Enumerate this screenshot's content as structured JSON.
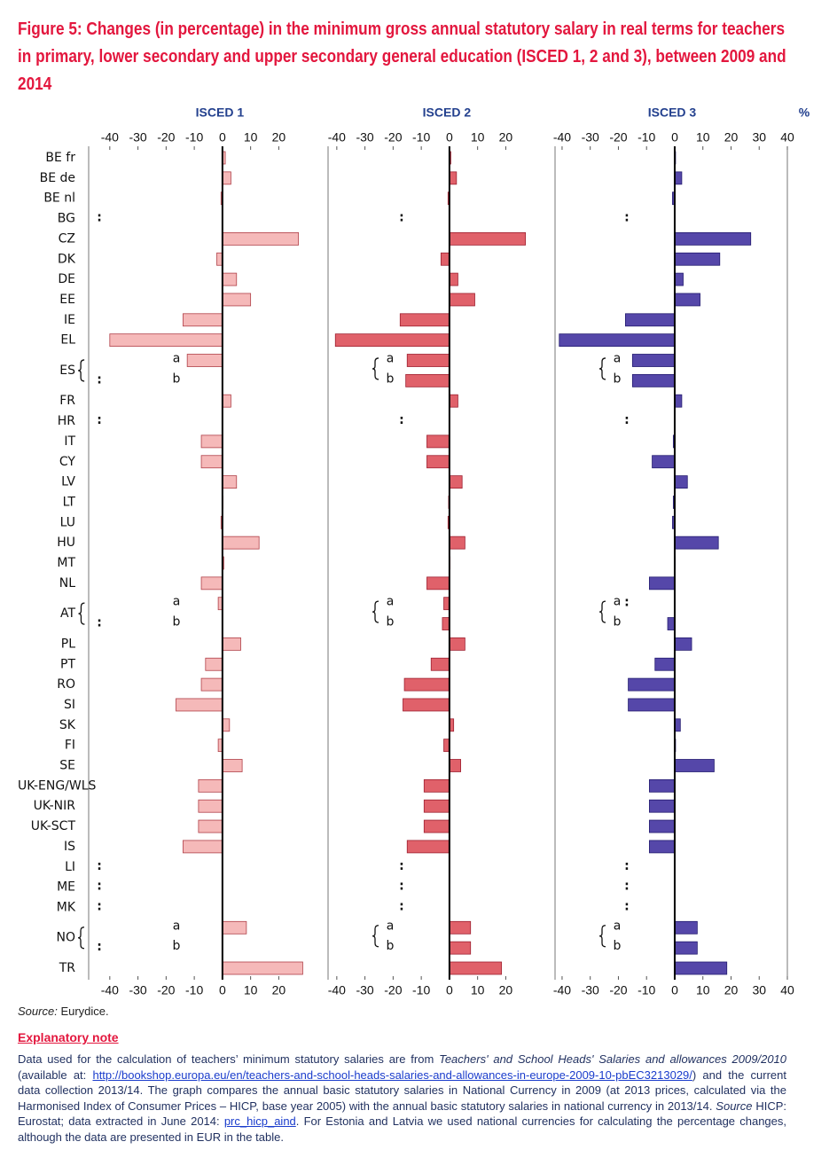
{
  "chart_data": {
    "type": "bar",
    "orientation": "horizontal",
    "title": "Figure 5: Changes (in percentage) in the minimum gross annual statutory salary in real terms for teachers in primary, lower secondary and upper secondary general education (ISCED 1, 2 and 3), between 2009 and 2014",
    "unit": "%",
    "missing_label": ":",
    "categories": [
      "BE fr",
      "BE de",
      "BE nl",
      "BG",
      "CZ",
      "DK",
      "DE",
      "EE",
      "IE",
      "EL",
      "ES",
      null,
      "FR",
      "HR",
      "IT",
      "CY",
      "LV",
      "LT",
      "LU",
      "HU",
      "MT",
      "NL",
      "AT",
      null,
      "PL",
      "PT",
      "RO",
      "SI",
      "SK",
      "FI",
      "SE",
      "UK-ENG/WLS",
      "UK-NIR",
      "UK-SCT",
      "IS",
      "LI",
      "ME",
      "MK",
      "NO",
      null,
      "TR"
    ],
    "sub_labels": [
      null,
      null,
      null,
      null,
      null,
      null,
      null,
      null,
      null,
      null,
      "a",
      "b",
      null,
      null,
      null,
      null,
      null,
      null,
      null,
      null,
      null,
      null,
      "a",
      "b",
      null,
      null,
      null,
      null,
      null,
      null,
      null,
      null,
      null,
      null,
      null,
      null,
      null,
      null,
      "a",
      "b",
      null
    ],
    "series": [
      {
        "name": "ISCED 1",
        "color": "#f5b9b9",
        "stroke": "#b04048",
        "xlim": [
          -47.5,
          37.5
        ],
        "xticks": [
          -40,
          -30,
          -20,
          -10,
          0,
          10,
          20
        ],
        "values": [
          1,
          3,
          -0.5,
          null,
          27,
          -2,
          5,
          10,
          -14,
          -40,
          -12.5,
          null,
          3,
          null,
          -7.5,
          -7.5,
          5,
          0,
          -0.5,
          13,
          0.5,
          -7.5,
          -1.5,
          null,
          6.5,
          -6,
          -7.5,
          -16.5,
          2.5,
          -1.5,
          7,
          -8.5,
          -8.5,
          -8.5,
          -14,
          null,
          null,
          null,
          8.5,
          null,
          28.5
        ]
      },
      {
        "name": "ISCED 2",
        "color": "#e0616a",
        "stroke": "#9e2030",
        "xlim": [
          -43.1,
          37.5
        ],
        "xticks": [
          -40,
          -30,
          -20,
          -10,
          0,
          10,
          20
        ],
        "values": [
          0.5,
          2.5,
          -0.5,
          null,
          27,
          -3,
          3,
          9,
          -17.5,
          -40.5,
          -15,
          -15.5,
          3,
          null,
          -8,
          -8,
          4.5,
          -0.3,
          -0.5,
          5.5,
          0,
          -8,
          -2,
          -2.5,
          5.5,
          -6.5,
          -16,
          -16.5,
          1.5,
          -2,
          4,
          -9,
          -9,
          -9,
          -15,
          null,
          null,
          null,
          7.5,
          7.5,
          18.5
        ]
      },
      {
        "name": "ISCED 3",
        "color": "#5547a9",
        "stroke": "#241c70",
        "xlim": [
          -42.5,
          40
        ],
        "xticks": [
          -40,
          -30,
          -20,
          -10,
          0,
          10,
          20,
          30,
          40
        ],
        "values": [
          0.3,
          2.5,
          -0.8,
          null,
          27,
          16,
          3,
          9,
          -17.5,
          -41,
          -15,
          -15,
          2.5,
          null,
          -0.5,
          -8,
          4.5,
          -0.5,
          -0.8,
          15.5,
          0,
          -9,
          null,
          -2.5,
          6,
          -7,
          -16.5,
          -16.5,
          2,
          0.3,
          14,
          -9,
          -9,
          -9,
          -9,
          null,
          null,
          null,
          8,
          8,
          18.5
        ]
      }
    ],
    "source_label": "Source:",
    "source": "Eurydice.",
    "note_title": "Explanatory note",
    "note": [
      {
        "text": "Data used for the calculation of teachers’ minimum statutory salaries are from ",
        "style": "normal"
      },
      {
        "text": "Teachers' and School Heads' Salaries and allowances 2009/2010",
        "style": "italic"
      },
      {
        "text": " (available at: ",
        "style": "normal"
      },
      {
        "text": "http://bookshop.europa.eu/en/teachers-and-school-heads-salaries-and-allowances-in-europe-2009-10-pbEC3213029/",
        "style": "link"
      },
      {
        "text": ") and the current data collection 2013/14. The graph compares the annual basic statutory salaries in National Currency in 2009 (at 2013 prices, calculated via the Harmonised Index of Consumer Prices – HICP, base year 2005) with the annual basic statutory salaries in national currency in 2013/14. ",
        "style": "normal"
      },
      {
        "text": "Source",
        "style": "italic"
      },
      {
        "text": " HICP: Eurostat; data extracted in June 2014: ",
        "style": "normal"
      },
      {
        "text": "prc_hicp_aind",
        "style": "link"
      },
      {
        "text": ". For Estonia and Latvia we used national currencies for calculating the percentage changes, although the data are presented in EUR in the table.",
        "style": "normal"
      }
    ]
  }
}
